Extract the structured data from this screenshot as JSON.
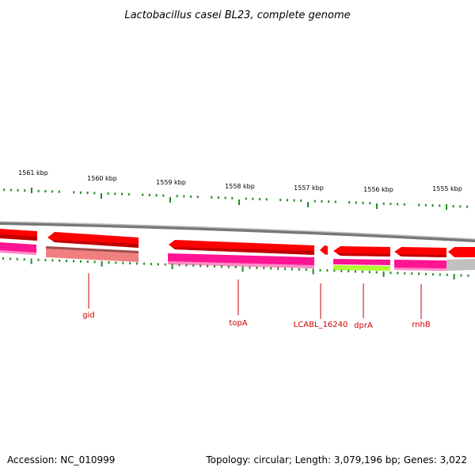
{
  "title": "Lactobacillus casei BL23, complete genome",
  "footer": {
    "accession": "Accession: NC_010999",
    "info": "Topology: circular; Length: 3,079,196 bp; Genes: 3,022"
  },
  "colors": {
    "forward_cds": "#ff0000",
    "reverse_cds": "#ff1493",
    "pseudo": "#f08080",
    "rrna": "#adff2f",
    "other": "#c0c0c0",
    "backbone": "#888888",
    "ticks": "#228b22",
    "gene_labels": "#cc0000"
  },
  "scale": {
    "unit": "kbp",
    "major_ticks_kbp": [
      1561,
      1560,
      1559,
      1558,
      1557,
      1556,
      1555
    ],
    "tick_labels": [
      "1561 kbp",
      "1560 kbp",
      "1559 kbp",
      "1558 kbp",
      "1557 kbp",
      "1556 kbp",
      "1555 kbp"
    ]
  },
  "genes": [
    {
      "name": "gid",
      "strand": "reverse"
    },
    {
      "name": "topA",
      "strand": "reverse"
    },
    {
      "name": "LCABL_16240",
      "strand": "reverse"
    },
    {
      "name": "dprA",
      "strand": "reverse"
    },
    {
      "name": "rnhB",
      "strand": "reverse"
    }
  ]
}
